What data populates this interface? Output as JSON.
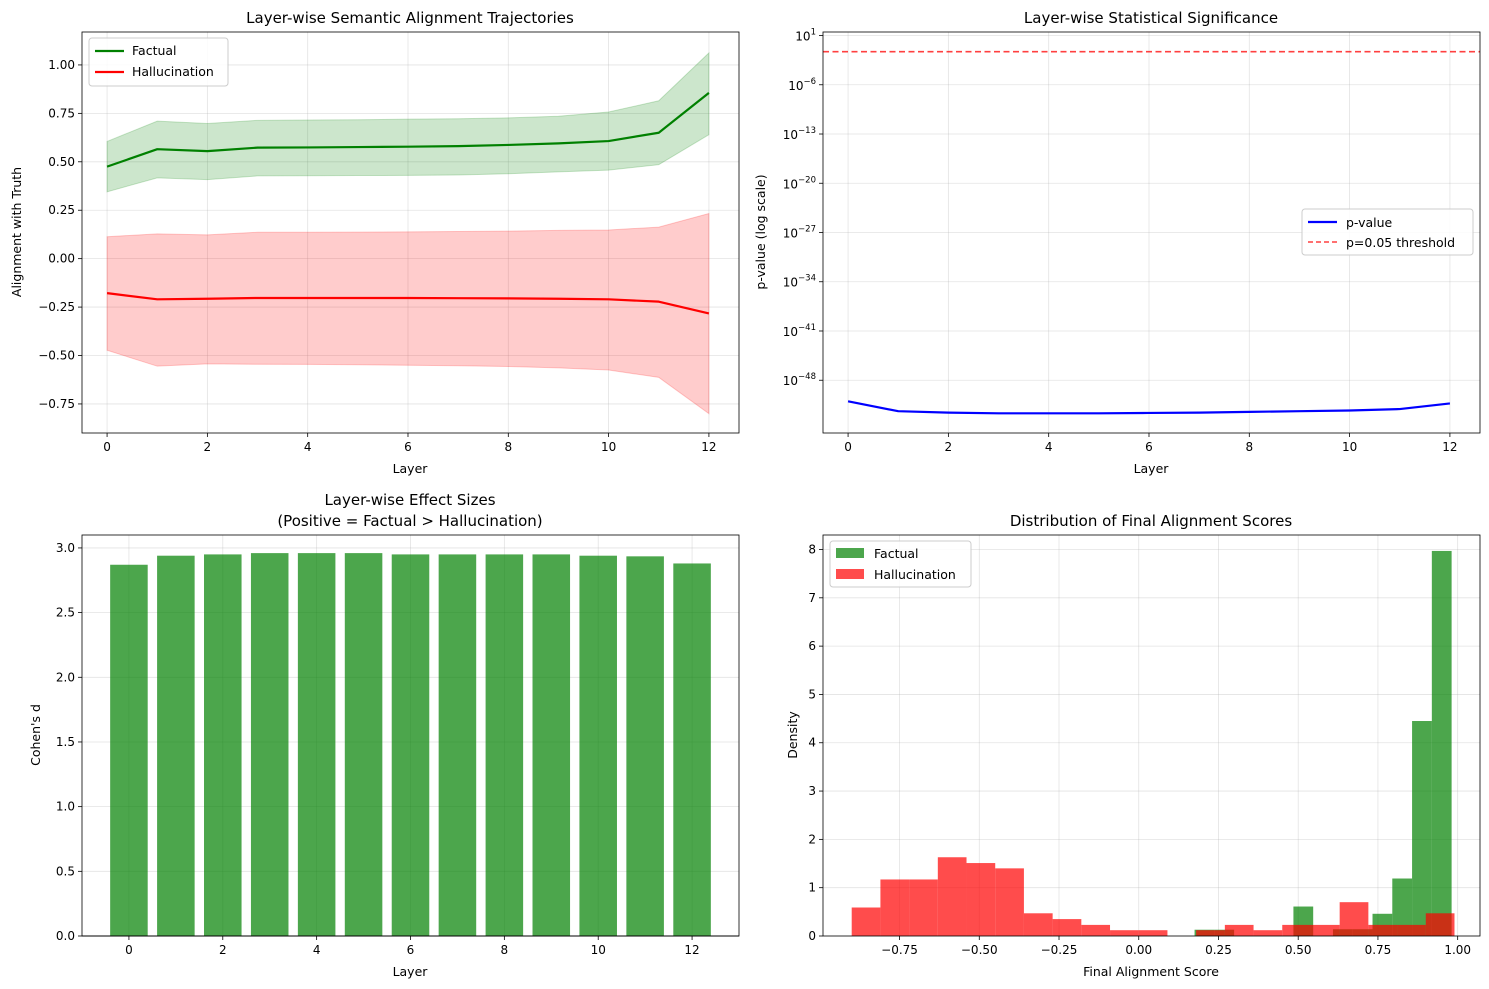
{
  "chart_data": [
    {
      "id": "alignment",
      "type": "line",
      "title": "Layer-wise Semantic Alignment Trajectories",
      "xlabel": "Layer",
      "ylabel": "Alignment with Truth",
      "xlim": [
        -0.5,
        12.6
      ],
      "ylim": [
        -0.9,
        1.17
      ],
      "xticks": [
        0,
        2,
        4,
        6,
        8,
        10,
        12
      ],
      "xtick_labels": [
        "0",
        "2",
        "4",
        "6",
        "8",
        "10",
        "12"
      ],
      "yticks": [
        -0.75,
        -0.5,
        -0.25,
        0.0,
        0.25,
        0.5,
        0.75,
        1.0
      ],
      "ytick_labels": [
        "−0.75",
        "−0.50",
        "−0.25",
        "0.00",
        "0.25",
        "0.50",
        "0.75",
        "1.00"
      ],
      "grid": true,
      "legend_position": "upper-left",
      "x": [
        0,
        1,
        2,
        3,
        4,
        5,
        6,
        7,
        8,
        9,
        10,
        11,
        12
      ],
      "series": [
        {
          "name": "Factual",
          "color": "#008000",
          "fill_color": "#008000",
          "values": [
            0.475,
            0.565,
            0.555,
            0.573,
            0.574,
            0.576,
            0.578,
            0.581,
            0.587,
            0.595,
            0.607,
            0.65,
            0.856
          ],
          "upper": [
            0.605,
            0.71,
            0.698,
            0.714,
            0.716,
            0.717,
            0.72,
            0.722,
            0.727,
            0.735,
            0.757,
            0.815,
            1.062
          ],
          "lower": [
            0.345,
            0.417,
            0.408,
            0.427,
            0.428,
            0.429,
            0.43,
            0.432,
            0.438,
            0.448,
            0.457,
            0.485,
            0.64
          ]
        },
        {
          "name": "Hallucination",
          "color": "#ff0000",
          "fill_color": "#ff0000",
          "values": [
            -0.178,
            -0.21,
            -0.207,
            -0.203,
            -0.203,
            -0.203,
            -0.203,
            -0.204,
            -0.205,
            -0.207,
            -0.21,
            -0.222,
            -0.283
          ],
          "upper": [
            0.113,
            0.128,
            0.123,
            0.136,
            0.136,
            0.137,
            0.138,
            0.14,
            0.142,
            0.146,
            0.148,
            0.163,
            0.233
          ],
          "lower": [
            -0.473,
            -0.555,
            -0.543,
            -0.545,
            -0.546,
            -0.548,
            -0.55,
            -0.553,
            -0.557,
            -0.564,
            -0.575,
            -0.613,
            -0.8
          ]
        }
      ]
    },
    {
      "id": "pvalue",
      "type": "line",
      "title": "Layer-wise Statistical Significance",
      "xlabel": "Layer",
      "ylabel": "p-value (log scale)",
      "yscale": "log",
      "xlim": [
        -0.5,
        12.6
      ],
      "ylim_log10": [
        -55.5,
        1.5
      ],
      "xticks": [
        0,
        2,
        4,
        6,
        8,
        10,
        12
      ],
      "xtick_labels": [
        "0",
        "2",
        "4",
        "6",
        "8",
        "10",
        "12"
      ],
      "ytick_exponents": [
        1,
        -6,
        -13,
        -20,
        -27,
        -34,
        -41,
        -48
      ],
      "ytick_labels": [
        "1",
        "−6",
        "−13",
        "−20",
        "−27",
        "−34",
        "−41",
        "−48"
      ],
      "ytick_base": "10",
      "grid": true,
      "legend_position": "center-right",
      "x": [
        0,
        1,
        2,
        3,
        4,
        5,
        6,
        7,
        8,
        9,
        10,
        11,
        12
      ],
      "series": [
        {
          "name": "p-value",
          "color": "#0000ff",
          "log10_values": [
            -51.0,
            -52.4,
            -52.6,
            -52.7,
            -52.7,
            -52.7,
            -52.65,
            -52.6,
            -52.5,
            -52.4,
            -52.3,
            -52.1,
            -51.3
          ]
        }
      ],
      "threshold": {
        "name": "p=0.05 threshold",
        "value": 0.05,
        "log10_value": -1.301,
        "color": "#ff0000",
        "style": "dashed"
      }
    },
    {
      "id": "effect",
      "type": "bar",
      "title": "Layer-wise Effect Sizes",
      "subtitle": "(Positive = Factual > Hallucination)",
      "xlabel": "Layer",
      "ylabel": "Cohen's d",
      "xlim": [
        -1.0,
        13.0
      ],
      "ylim": [
        0,
        3.1
      ],
      "xticks": [
        0,
        2,
        4,
        6,
        8,
        10,
        12
      ],
      "xtick_labels": [
        "0",
        "2",
        "4",
        "6",
        "8",
        "10",
        "12"
      ],
      "yticks": [
        0.0,
        0.5,
        1.0,
        1.5,
        2.0,
        2.5,
        3.0
      ],
      "ytick_labels": [
        "0.0",
        "0.5",
        "1.0",
        "1.5",
        "2.0",
        "2.5",
        "3.0"
      ],
      "grid": true,
      "bar_color": "#008000",
      "categories": [
        0,
        1,
        2,
        3,
        4,
        5,
        6,
        7,
        8,
        9,
        10,
        11,
        12
      ],
      "values": [
        2.87,
        2.94,
        2.95,
        2.96,
        2.96,
        2.96,
        2.95,
        2.95,
        2.95,
        2.95,
        2.94,
        2.935,
        2.88
      ]
    },
    {
      "id": "distribution",
      "type": "histogram",
      "title": "Distribution of Final Alignment Scores",
      "xlabel": "Final Alignment Score",
      "ylabel": "Density",
      "xlim": [
        -0.99,
        1.07
      ],
      "ylim": [
        0,
        8.3
      ],
      "xticks": [
        -0.75,
        -0.5,
        -0.25,
        0.0,
        0.25,
        0.5,
        0.75,
        1.0
      ],
      "xtick_labels": [
        "−0.75",
        "−0.50",
        "−0.25",
        "0.00",
        "0.25",
        "0.50",
        "0.75",
        "1.00"
      ],
      "yticks": [
        0,
        1,
        2,
        3,
        4,
        5,
        6,
        7,
        8
      ],
      "ytick_labels": [
        "0",
        "1",
        "2",
        "3",
        "4",
        "5",
        "6",
        "7",
        "8"
      ],
      "grid": true,
      "legend_position": "upper-left",
      "series": [
        {
          "name": "Factual",
          "color": "#008000",
          "bins": [
            [
              0.175,
              0.237,
              0.13
            ],
            [
              0.237,
              0.299,
              0.13
            ],
            [
              0.485,
              0.547,
              0.61
            ],
            [
              0.609,
              0.671,
              0.14
            ],
            [
              0.671,
              0.733,
              0.14
            ],
            [
              0.733,
              0.795,
              0.46
            ],
            [
              0.795,
              0.857,
              1.19
            ],
            [
              0.857,
              0.919,
              4.45
            ],
            [
              0.919,
              0.981,
              7.97
            ]
          ]
        },
        {
          "name": "Hallucination",
          "color": "#ff0000",
          "bins": [
            [
              -0.9,
              -0.81,
              0.59
            ],
            [
              -0.81,
              -0.72,
              1.17
            ],
            [
              -0.72,
              -0.63,
              1.17
            ],
            [
              -0.63,
              -0.54,
              1.63
            ],
            [
              -0.54,
              -0.45,
              1.51
            ],
            [
              -0.45,
              -0.36,
              1.4
            ],
            [
              -0.36,
              -0.27,
              0.47
            ],
            [
              -0.27,
              -0.18,
              0.35
            ],
            [
              -0.18,
              -0.09,
              0.23
            ],
            [
              -0.09,
              0.0,
              0.12
            ],
            [
              0.0,
              0.09,
              0.12
            ],
            [
              0.18,
              0.27,
              0.12
            ],
            [
              0.27,
              0.36,
              0.23
            ],
            [
              0.36,
              0.45,
              0.12
            ],
            [
              0.45,
              0.54,
              0.23
            ],
            [
              0.54,
              0.63,
              0.23
            ],
            [
              0.63,
              0.72,
              0.7
            ],
            [
              0.72,
              0.81,
              0.23
            ],
            [
              0.81,
              0.9,
              0.23
            ],
            [
              0.9,
              0.99,
              0.47
            ]
          ]
        }
      ]
    }
  ]
}
